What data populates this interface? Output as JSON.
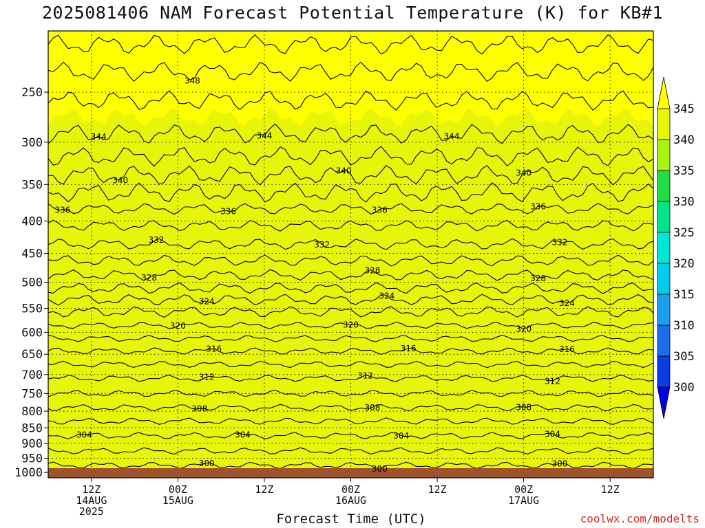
{
  "chart_data": {
    "type": "heatmap",
    "title": "2025081406 NAM Forecast Potential Temperature (K) for KB#1",
    "xlabel": "Forecast Time (UTC)",
    "ylabel": "",
    "units": "K",
    "y_axis": {
      "scale": "log-pressure",
      "range": [
        1020,
        200
      ],
      "ticks": [
        250,
        300,
        350,
        400,
        450,
        500,
        550,
        600,
        650,
        700,
        750,
        800,
        850,
        900,
        950,
        1000
      ]
    },
    "x_axis": {
      "range_hours": [
        0,
        84
      ],
      "ticks": [
        {
          "hour": 6,
          "lines": [
            "12Z",
            "14AUG",
            "2025"
          ]
        },
        {
          "hour": 18,
          "lines": [
            "00Z",
            "15AUG"
          ]
        },
        {
          "hour": 30,
          "lines": [
            "12Z"
          ]
        },
        {
          "hour": 42,
          "lines": [
            "00Z",
            "16AUG"
          ]
        },
        {
          "hour": 54,
          "lines": [
            "12Z"
          ]
        },
        {
          "hour": 66,
          "lines": [
            "00Z",
            "17AUG"
          ]
        },
        {
          "hour": 78,
          "lines": [
            "12Z"
          ]
        }
      ]
    },
    "grid": true,
    "color_levels": [
      300,
      305,
      310,
      315,
      320,
      325,
      330,
      335,
      340,
      345
    ],
    "colors": [
      "#0000e6",
      "#0a3ce6",
      "#1a6ee8",
      "#1aa0f0",
      "#00cdf0",
      "#00e8d2",
      "#00e48a",
      "#22dd44",
      "#a8f20f",
      "#e6f50a",
      "#ffff00"
    ],
    "colorbar_labels": [
      "345",
      "340",
      "335",
      "330",
      "325",
      "320",
      "315",
      "310",
      "305",
      "300"
    ],
    "theta_profile": [
      {
        "p": 1000,
        "theta": 299
      },
      {
        "p": 950,
        "theta": 301
      },
      {
        "p": 900,
        "theta": 303
      },
      {
        "p": 850,
        "theta": 305
      },
      {
        "p": 800,
        "theta": 307.5
      },
      {
        "p": 750,
        "theta": 310
      },
      {
        "p": 700,
        "theta": 312.5
      },
      {
        "p": 650,
        "theta": 315.5
      },
      {
        "p": 600,
        "theta": 319
      },
      {
        "p": 550,
        "theta": 322.5
      },
      {
        "p": 500,
        "theta": 327
      },
      {
        "p": 450,
        "theta": 331
      },
      {
        "p": 400,
        "theta": 334.5
      },
      {
        "p": 350,
        "theta": 339
      },
      {
        "p": 300,
        "theta": 343.5
      },
      {
        "p": 250,
        "theta": 346.5
      },
      {
        "p": 200,
        "theta": 351
      }
    ],
    "contour_interval": 2,
    "contour_labels": [
      {
        "text": "348",
        "hour": 20,
        "theta": 348
      },
      {
        "text": "344",
        "hour": 7,
        "theta": 344
      },
      {
        "text": "344",
        "hour": 30,
        "theta": 344
      },
      {
        "text": "344",
        "hour": 56,
        "theta": 344
      },
      {
        "text": "340",
        "hour": 10,
        "theta": 340
      },
      {
        "text": "340",
        "hour": 41,
        "theta": 340
      },
      {
        "text": "340",
        "hour": 66,
        "theta": 340
      },
      {
        "text": "336",
        "hour": 2,
        "theta": 336
      },
      {
        "text": "336",
        "hour": 25,
        "theta": 336
      },
      {
        "text": "336",
        "hour": 46,
        "theta": 336
      },
      {
        "text": "336",
        "hour": 68,
        "theta": 336
      },
      {
        "text": "332",
        "hour": 15,
        "theta": 332
      },
      {
        "text": "332",
        "hour": 38,
        "theta": 332
      },
      {
        "text": "332",
        "hour": 71,
        "theta": 332
      },
      {
        "text": "328",
        "hour": 14,
        "theta": 328
      },
      {
        "text": "328",
        "hour": 45,
        "theta": 328
      },
      {
        "text": "328",
        "hour": 68,
        "theta": 328
      },
      {
        "text": "324",
        "hour": 22,
        "theta": 324
      },
      {
        "text": "324",
        "hour": 47,
        "theta": 324
      },
      {
        "text": "324",
        "hour": 72,
        "theta": 324
      },
      {
        "text": "320",
        "hour": 18,
        "theta": 320
      },
      {
        "text": "320",
        "hour": 42,
        "theta": 320
      },
      {
        "text": "320",
        "hour": 66,
        "theta": 320
      },
      {
        "text": "316",
        "hour": 23,
        "theta": 316
      },
      {
        "text": "316",
        "hour": 50,
        "theta": 316
      },
      {
        "text": "316",
        "hour": 72,
        "theta": 316
      },
      {
        "text": "312",
        "hour": 22,
        "theta": 312
      },
      {
        "text": "312",
        "hour": 44,
        "theta": 312
      },
      {
        "text": "312",
        "hour": 70,
        "theta": 312
      },
      {
        "text": "308",
        "hour": 21,
        "theta": 308
      },
      {
        "text": "308",
        "hour": 45,
        "theta": 308
      },
      {
        "text": "308",
        "hour": 66,
        "theta": 308
      },
      {
        "text": "304",
        "hour": 27,
        "theta": 304
      },
      {
        "text": "304",
        "hour": 49,
        "theta": 304
      },
      {
        "text": "304",
        "hour": 70,
        "theta": 304
      },
      {
        "text": "304",
        "hour": 5,
        "theta": 304
      },
      {
        "text": "300",
        "hour": 22,
        "theta": 300
      },
      {
        "text": "300",
        "hour": 46,
        "theta": 300
      },
      {
        "text": "300",
        "hour": 71,
        "theta": 300
      }
    ]
  },
  "credit": "coolwx.com/modelts",
  "surface_color": "#a0522d"
}
